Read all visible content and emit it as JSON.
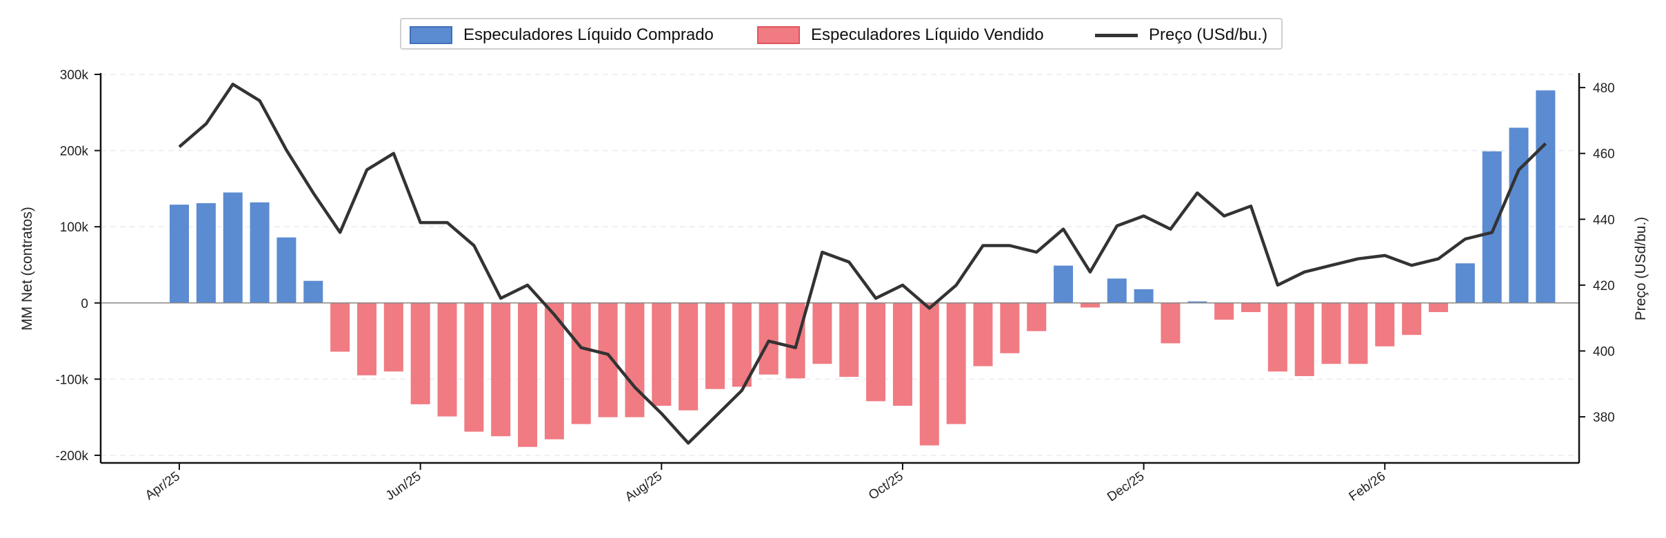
{
  "chart_data": {
    "type": "bar",
    "legend": {
      "placement": "top-center",
      "items": [
        {
          "label": "Especuladores Líquido Comprado",
          "kind": "bar",
          "color": "#5b8bd1"
        },
        {
          "label": "Especuladores Líquido Vendido",
          "kind": "bar",
          "color": "#f07b82"
        },
        {
          "label": "Preço (USd/bu.)",
          "kind": "line",
          "color": "#333333"
        }
      ]
    },
    "x_tick_labels": [
      "Apr/25",
      "Jun/25",
      "Aug/25",
      "Oct/25",
      "Dec/25",
      "Feb/26"
    ],
    "x_tick_week_index": [
      0,
      9,
      18,
      27,
      36,
      45
    ],
    "left_axis": {
      "label": "MM Net (contratos)",
      "ylim": [
        -210000,
        300000
      ],
      "ticks": [
        -200000,
        -100000,
        0,
        100000,
        200000,
        300000
      ],
      "tick_labels": [
        "-200k",
        "-100k",
        "0",
        "100k",
        "200k",
        "300k"
      ]
    },
    "right_axis": {
      "label": "Preço (USd/bu.)",
      "ylim": [
        366,
        484
      ],
      "ticks": [
        380,
        400,
        420,
        440,
        460,
        480
      ],
      "tick_labels": [
        "380",
        "400",
        "420",
        "440",
        "460",
        "480"
      ]
    },
    "grid": "horizontal-dashed",
    "colors": {
      "positive": "#5b8bd1",
      "negative": "#f07b82",
      "price": "#333333",
      "zero_line": "#888888"
    },
    "series": [
      {
        "name": "MM Net",
        "values": [
          129000,
          131000,
          145000,
          132000,
          86000,
          29000,
          -64000,
          -95000,
          -90000,
          -133000,
          -149000,
          -169000,
          -175000,
          -189000,
          -179000,
          -159000,
          -150000,
          -150000,
          -135000,
          -141000,
          -113000,
          -110000,
          -94000,
          -99000,
          -80000,
          -97000,
          -129000,
          -135000,
          -187000,
          -159000,
          -83000,
          -66000,
          -37000,
          49000,
          -6000,
          32000,
          18000,
          -53000,
          2000,
          -22000,
          -12000,
          -90000,
          -96000,
          -80000,
          -80000,
          -57000,
          -42000,
          -12000,
          52000,
          199000,
          230000,
          279000
        ]
      },
      {
        "name": "Preço (USd/bu.)",
        "values": [
          462,
          469,
          481,
          476,
          461,
          448,
          436,
          455,
          460,
          439,
          439,
          432,
          416,
          420,
          411,
          401,
          399,
          389,
          381,
          372,
          380,
          388,
          403,
          401,
          430,
          427,
          416,
          420,
          413,
          420,
          432,
          432,
          430,
          437,
          424,
          438,
          441,
          437,
          448,
          441,
          444,
          420,
          424,
          426,
          428,
          429,
          426,
          428,
          434,
          436,
          455,
          463
        ]
      }
    ]
  }
}
